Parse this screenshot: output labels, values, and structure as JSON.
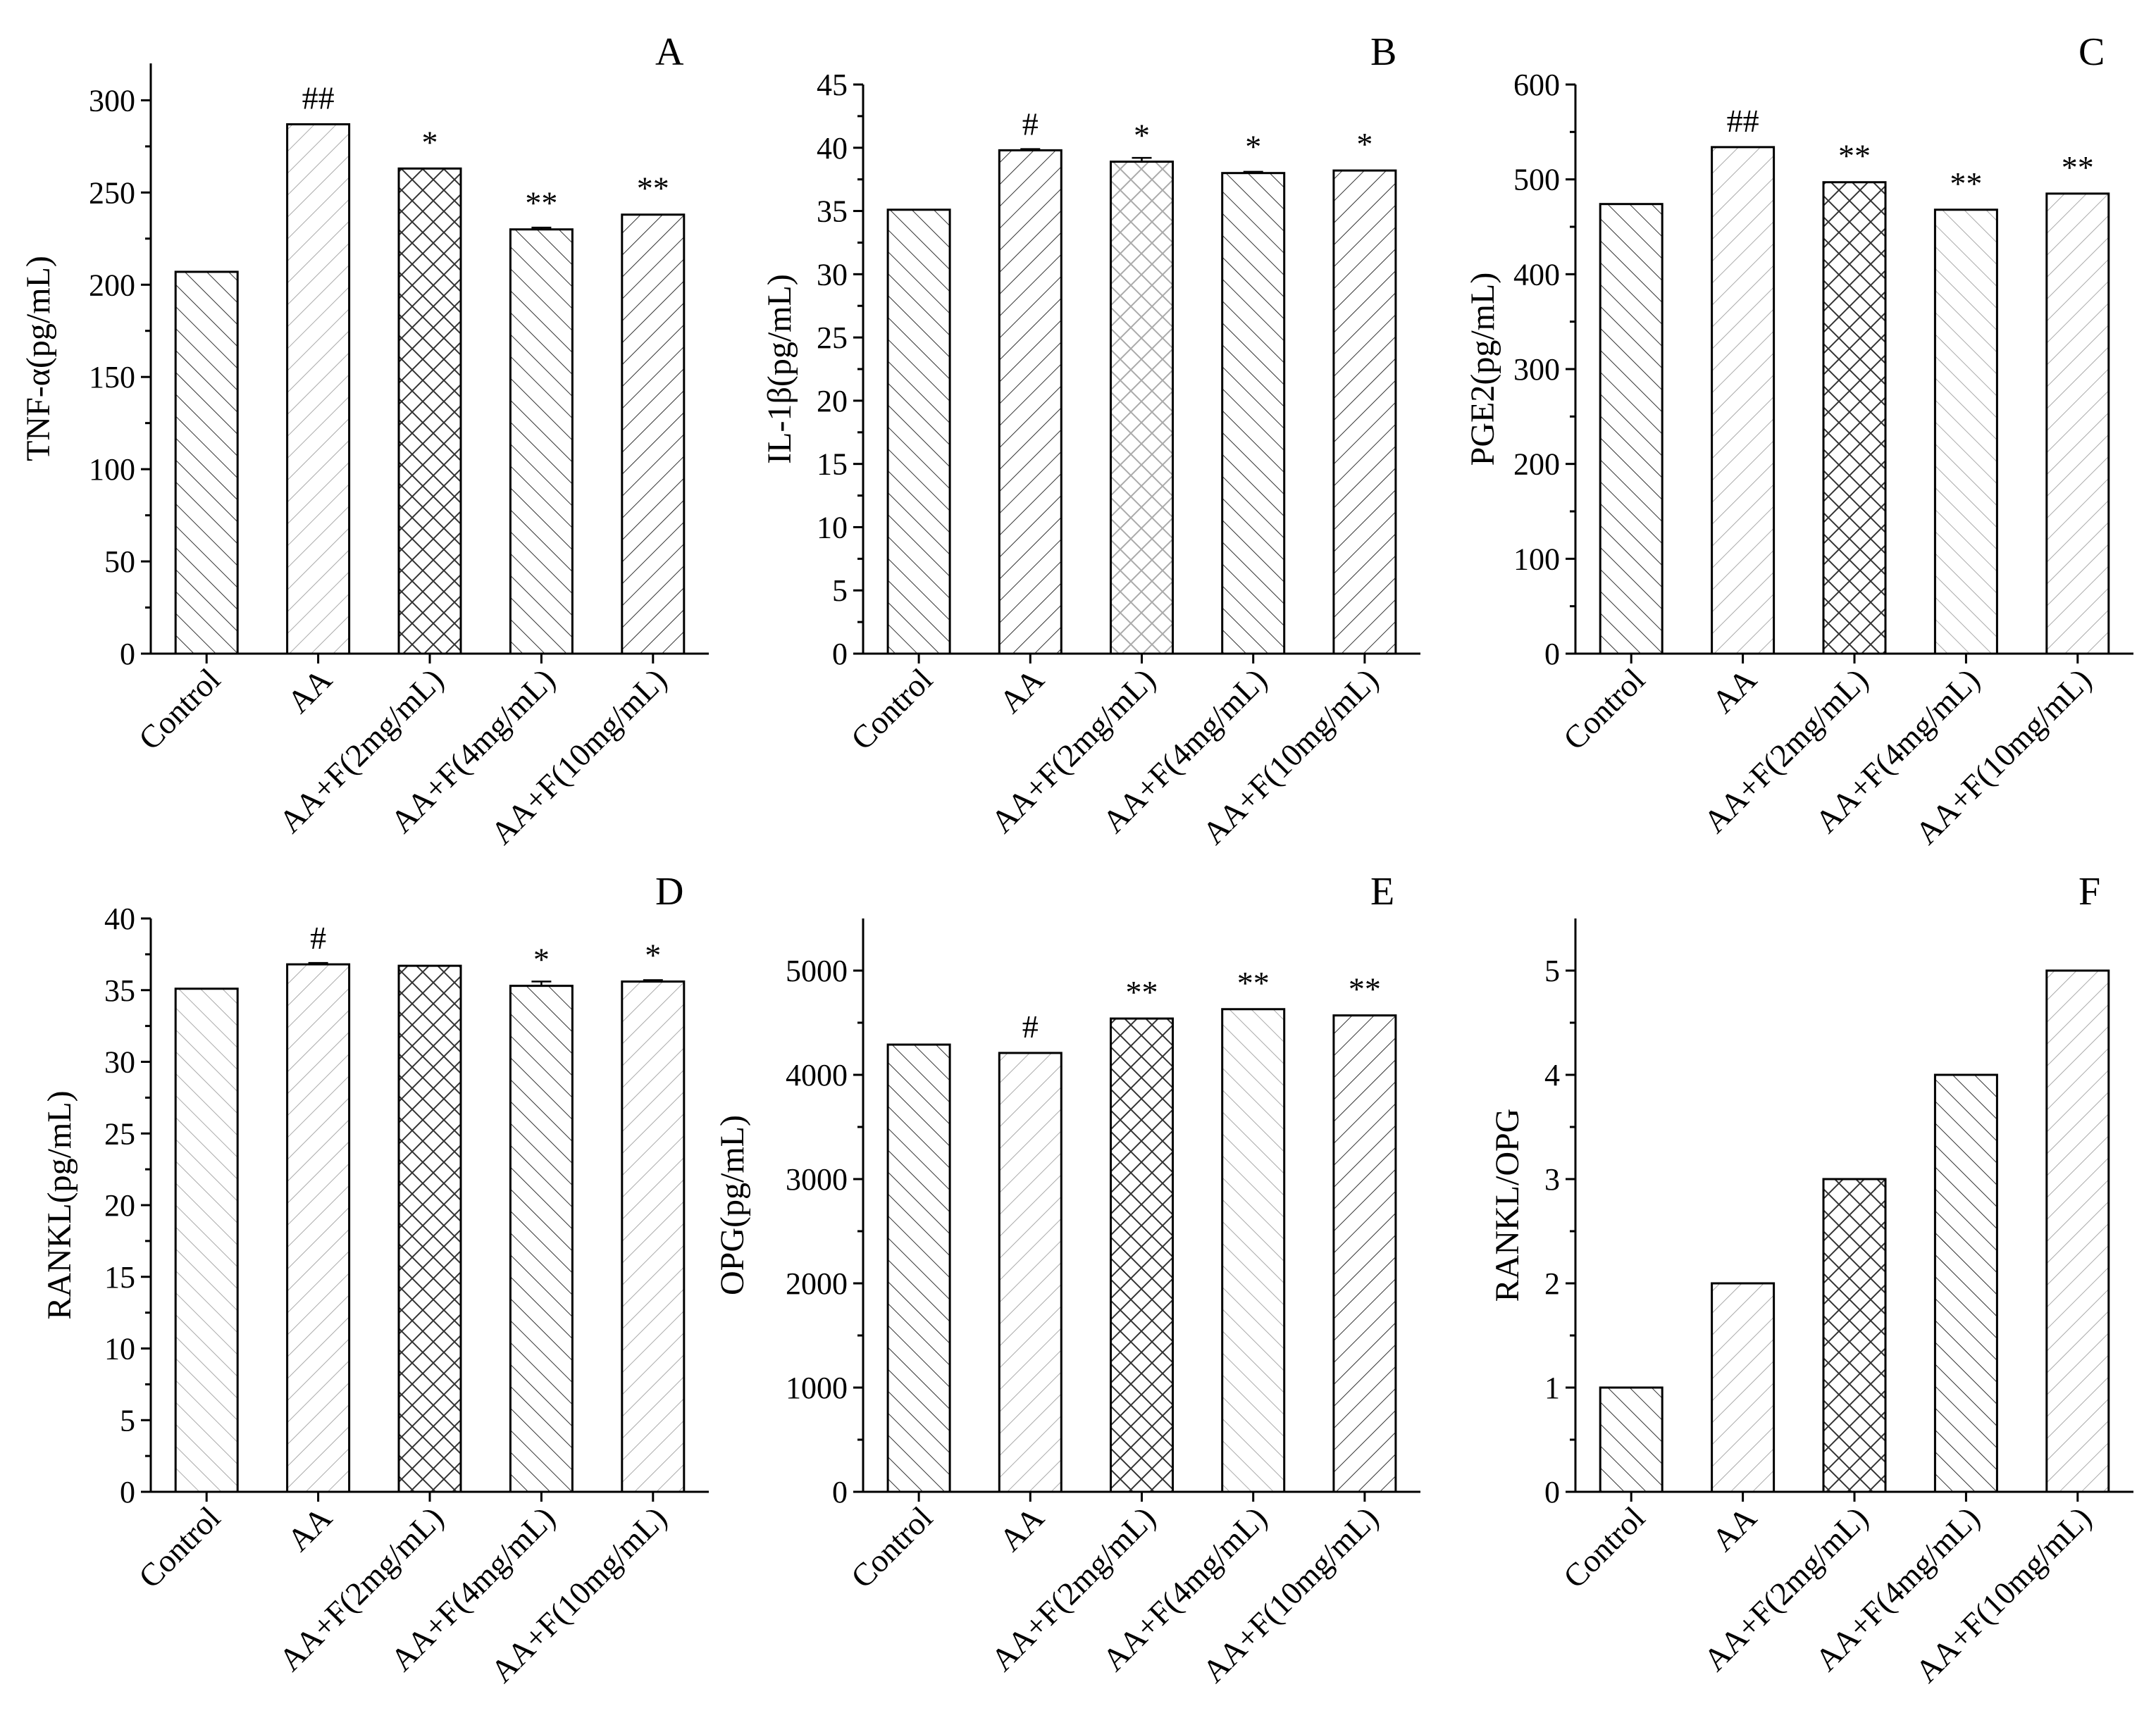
{
  "chart_data": [
    {
      "type": "bar",
      "panel": "A",
      "ylabel": "TNF-α(pg/mL)",
      "categories": [
        "Control",
        "AA",
        "AA+F(2mg/mL)",
        "AA+F(4mg/mL)",
        "AA+F(10mg/mL)"
      ],
      "values": [
        207,
        287,
        263,
        230,
        238
      ],
      "errors": [
        0,
        0,
        0,
        1,
        0
      ],
      "significance": [
        "",
        "##",
        "*",
        "**",
        "**"
      ],
      "ylim": [
        0,
        320
      ],
      "yticks": [
        0,
        50,
        100,
        150,
        200,
        250,
        300
      ],
      "colors": [
        "#222222",
        "#999999",
        "#222222",
        "#222222",
        "#222222"
      ]
    },
    {
      "type": "bar",
      "panel": "B",
      "ylabel": "IL-1β(pg/mL)",
      "categories": [
        "Control",
        "AA",
        "AA+F(2mg/mL)",
        "AA+F(4mg/mL)",
        "AA+F(10mg/mL)"
      ],
      "values": [
        35.1,
        39.8,
        38.9,
        38.0,
        38.2
      ],
      "errors": [
        0,
        0.1,
        0.3,
        0.1,
        0
      ],
      "significance": [
        "",
        "#",
        "*",
        "*",
        "*"
      ],
      "ylim": [
        0,
        45
      ],
      "yticks": [
        0,
        5,
        10,
        15,
        20,
        25,
        30,
        35,
        40,
        45
      ],
      "colors": [
        "#222222",
        "#222222",
        "#999999",
        "#222222",
        "#222222"
      ]
    },
    {
      "type": "bar",
      "panel": "C",
      "ylabel": "PGE2(pg/mL)",
      "categories": [
        "Control",
        "AA",
        "AA+F(2mg/mL)",
        "AA+F(4mg/mL)",
        "AA+F(10mg/mL)"
      ],
      "values": [
        474,
        534,
        497,
        468,
        485
      ],
      "errors": [
        0,
        0,
        0,
        0,
        0
      ],
      "significance": [
        "",
        "##",
        "**",
        "**",
        "**"
      ],
      "ylim": [
        0,
        600
      ],
      "yticks": [
        0,
        100,
        200,
        300,
        400,
        500,
        600
      ],
      "colors": [
        "#222222",
        "#999999",
        "#222222",
        "#999999",
        "#999999"
      ]
    },
    {
      "type": "bar",
      "panel": "D",
      "ylabel": "RANKL(pg/mL)",
      "categories": [
        "Control",
        "AA",
        "AA+F(2mg/mL)",
        "AA+F(4mg/mL)",
        "AA+F(10mg/mL)"
      ],
      "values": [
        35.1,
        36.8,
        36.7,
        35.3,
        35.6
      ],
      "errors": [
        0,
        0.1,
        0,
        0.3,
        0.1
      ],
      "significance": [
        "",
        "#",
        "",
        "*",
        "*"
      ],
      "ylim": [
        0,
        40
      ],
      "yticks": [
        0,
        5,
        10,
        15,
        20,
        25,
        30,
        35,
        40
      ],
      "colors": [
        "#999999",
        "#999999",
        "#222222",
        "#222222",
        "#999999"
      ]
    },
    {
      "type": "bar",
      "panel": "E",
      "ylabel": "OPG(pg/mL)",
      "categories": [
        "Control",
        "AA",
        "AA+F(2mg/mL)",
        "AA+F(4mg/mL)",
        "AA+F(10mg/mL)"
      ],
      "values": [
        4290,
        4210,
        4540,
        4630,
        4570
      ],
      "errors": [
        0,
        0,
        0,
        0,
        0
      ],
      "significance": [
        "",
        "#",
        "**",
        "**",
        "**"
      ],
      "ylim": [
        0,
        5500
      ],
      "yticks": [
        0,
        1000,
        2000,
        3000,
        4000,
        5000
      ],
      "colors": [
        "#222222",
        "#999999",
        "#222222",
        "#999999",
        "#222222"
      ]
    },
    {
      "type": "bar",
      "panel": "F",
      "ylabel": "RANKL/OPG",
      "categories": [
        "Control",
        "AA",
        "AA+F(2mg/mL)",
        "AA+F(4mg/mL)",
        "AA+F(10mg/mL)"
      ],
      "values": [
        1,
        2,
        3,
        4,
        5
      ],
      "errors": [
        0,
        0,
        0,
        0,
        0
      ],
      "significance": [
        "",
        "",
        "",
        "",
        ""
      ],
      "ylim": [
        0,
        5.5
      ],
      "yticks": [
        0,
        1,
        2,
        3,
        4,
        5
      ],
      "colors": [
        "#222222",
        "#999999",
        "#222222",
        "#222222",
        "#999999"
      ]
    }
  ]
}
